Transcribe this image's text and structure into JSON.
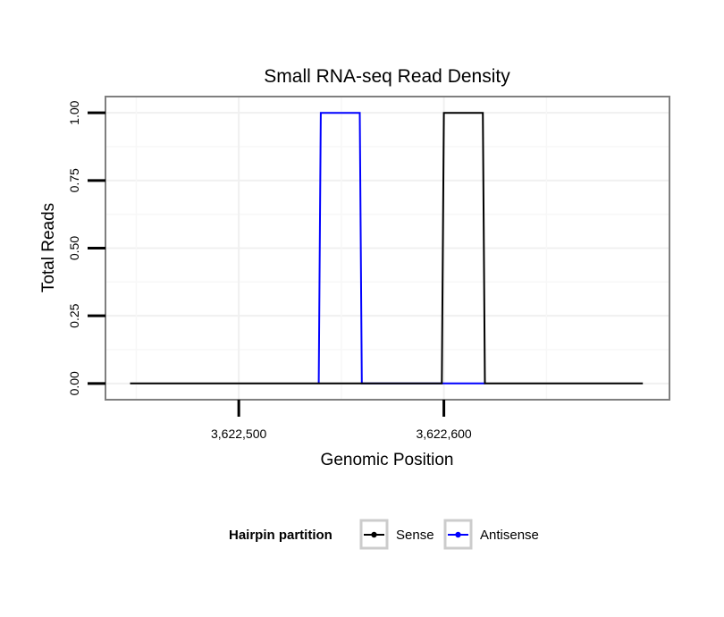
{
  "chart_data": {
    "type": "line",
    "title": "Small RNA-seq Read Density",
    "xlabel": "Genomic Position",
    "ylabel": "Total Reads",
    "xlim": [
      3622435,
      3622710
    ],
    "ylim": [
      -0.06,
      1.06
    ],
    "x_ticks": [
      3622500,
      3622600
    ],
    "x_tick_labels": [
      "3,622,500",
      "3,622,600"
    ],
    "y_ticks": [
      0,
      0.25,
      0.5,
      0.75,
      1
    ],
    "y_tick_labels": [
      "0.00",
      "0.25",
      "0.50",
      "0.75",
      "1.00"
    ],
    "grid": true,
    "legend": {
      "title": "Hairpin partition",
      "position": "bottom"
    },
    "series": [
      {
        "name": "Sense",
        "color": "#000000",
        "x": [
          3622447,
          3622599,
          3622600,
          3622619,
          3622620,
          3622697
        ],
        "y": [
          0,
          0,
          1,
          1,
          0,
          0
        ]
      },
      {
        "name": "Antisense",
        "color": "#0000ff",
        "x": [
          3622539,
          3622540,
          3622559,
          3622560,
          3622599,
          3622620
        ],
        "y": [
          0,
          1,
          1,
          0,
          0,
          0
        ]
      }
    ]
  }
}
